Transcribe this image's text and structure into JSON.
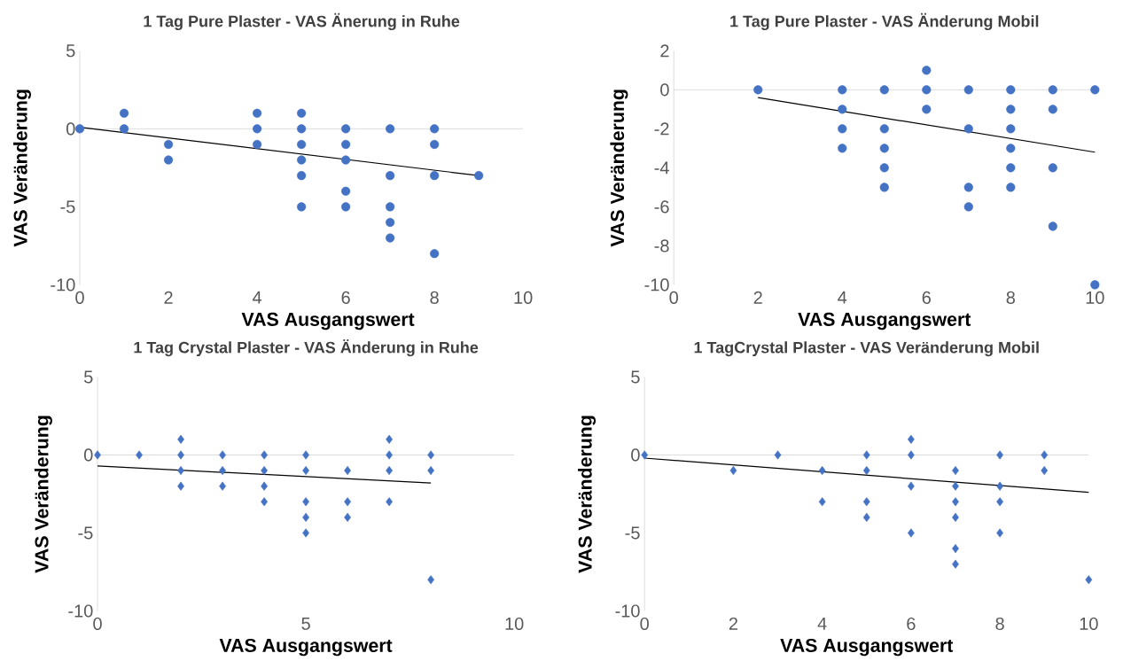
{
  "chart_data": [
    {
      "type": "scatter",
      "title": "1 Tag Pure Plaster - VAS Änerung in Ruhe",
      "xlabel": "VAS Ausgangswert",
      "ylabel": "VAS Veränderung",
      "xlim": [
        0,
        10
      ],
      "ylim": [
        -10,
        5
      ],
      "xticks": [
        0,
        2,
        4,
        6,
        8,
        10
      ],
      "yticks": [
        -10,
        -5,
        0,
        5
      ],
      "marker": "circle",
      "series": [
        {
          "type": "scatter",
          "color": "#4472c4",
          "x": [
            0,
            1,
            1,
            2,
            2,
            4,
            4,
            4,
            5,
            5,
            5,
            5,
            5,
            5,
            6,
            6,
            6,
            6,
            6,
            7,
            7,
            7,
            7,
            7,
            8,
            8,
            8,
            8,
            9
          ],
          "values": [
            0,
            1,
            0,
            -1,
            -2,
            1,
            0,
            -1,
            1,
            0,
            -1,
            -2,
            -3,
            -5,
            0,
            -1,
            -2,
            -4,
            -5,
            0,
            -3,
            -5,
            -6,
            -7,
            0,
            -1,
            -3,
            -8,
            -3
          ]
        },
        {
          "type": "line",
          "marker": "none",
          "color": "#000000",
          "x": [
            0,
            9
          ],
          "values": [
            0.1,
            -3.0
          ]
        }
      ]
    },
    {
      "type": "scatter",
      "title": "1 Tag Pure Plaster - VAS Änderung  Mobil",
      "xlabel": "VAS Ausgangswert",
      "ylabel": "VAS Veränderung",
      "xlim": [
        0,
        10
      ],
      "ylim": [
        -10,
        2
      ],
      "xticks": [
        0,
        2,
        4,
        6,
        8,
        10
      ],
      "yticks": [
        -10,
        -8,
        -6,
        -4,
        -2,
        0,
        2
      ],
      "marker": "circle",
      "series": [
        {
          "type": "scatter",
          "color": "#4472c4",
          "x": [
            2,
            4,
            4,
            4,
            4,
            5,
            5,
            5,
            5,
            5,
            6,
            6,
            6,
            7,
            7,
            7,
            7,
            8,
            8,
            8,
            8,
            8,
            8,
            9,
            9,
            9,
            9,
            10,
            10
          ],
          "values": [
            0,
            0,
            -1,
            -2,
            -3,
            0,
            -2,
            -3,
            -4,
            -5,
            1,
            0,
            -1,
            0,
            -2,
            -5,
            -6,
            0,
            -1,
            -2,
            -3,
            -4,
            -5,
            0,
            -1,
            -4,
            -7,
            0,
            -10
          ]
        },
        {
          "type": "line",
          "marker": "none",
          "color": "#000000",
          "x": [
            2,
            10
          ],
          "values": [
            -0.4,
            -3.2
          ]
        }
      ]
    },
    {
      "type": "scatter",
      "title": "1 Tag Crystal Plaster - VAS Änderung  in Ruhe",
      "xlabel": "VAS Ausgangswert",
      "ylabel": "VAS Veränderung",
      "xlim": [
        0,
        10
      ],
      "ylim": [
        -10,
        5
      ],
      "xticks": [
        0,
        5,
        10
      ],
      "yticks": [
        -10,
        -5,
        0,
        5
      ],
      "marker": "diamond",
      "series": [
        {
          "type": "scatter",
          "color": "#4472c4",
          "x": [
            0,
            1,
            2,
            2,
            2,
            2,
            3,
            3,
            3,
            4,
            4,
            4,
            4,
            5,
            5,
            5,
            5,
            5,
            6,
            6,
            6,
            7,
            7,
            7,
            7,
            8,
            8,
            8
          ],
          "values": [
            0,
            0,
            1,
            0,
            -1,
            -2,
            0,
            -1,
            -2,
            0,
            -1,
            -2,
            -3,
            0,
            -1,
            -3,
            -4,
            -5,
            -1,
            -3,
            -4,
            1,
            0,
            -1,
            -3,
            0,
            -1,
            -8
          ]
        },
        {
          "type": "line",
          "marker": "none",
          "color": "#000000",
          "x": [
            0,
            8
          ],
          "values": [
            -0.7,
            -1.8
          ]
        }
      ]
    },
    {
      "type": "scatter",
      "title": "1 TagCrystal Plaster - VAS Veränderung Mobil",
      "xlabel": "VAS Ausgangswert",
      "ylabel": "VAS Veränderung",
      "xlim": [
        0,
        10
      ],
      "ylim": [
        -10,
        5
      ],
      "xticks": [
        0,
        2,
        4,
        6,
        8,
        10
      ],
      "yticks": [
        -10,
        -5,
        0,
        5
      ],
      "marker": "diamond",
      "series": [
        {
          "type": "scatter",
          "color": "#4472c4",
          "x": [
            0,
            2,
            3,
            4,
            4,
            5,
            5,
            5,
            5,
            6,
            6,
            6,
            6,
            7,
            7,
            7,
            7,
            7,
            7,
            8,
            8,
            8,
            8,
            9,
            9,
            10
          ],
          "values": [
            0,
            -1,
            0,
            -1,
            -3,
            0,
            -1,
            -3,
            -4,
            1,
            0,
            -2,
            -5,
            -1,
            -2,
            -3,
            -4,
            -6,
            -7,
            0,
            -2,
            -3,
            -5,
            0,
            -1,
            -8
          ]
        },
        {
          "type": "line",
          "marker": "none",
          "color": "#000000",
          "x": [
            0,
            10
          ],
          "values": [
            -0.2,
            -2.4
          ]
        }
      ]
    }
  ]
}
